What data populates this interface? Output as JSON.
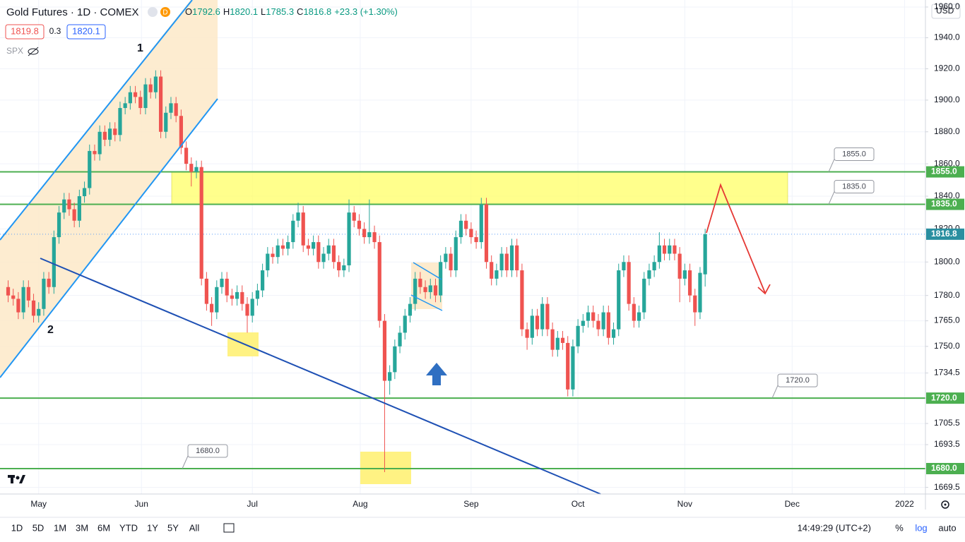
{
  "header": {
    "symbol": "Gold Futures · 1D · COMEX",
    "badge": "D",
    "ohlc_labels": [
      "O",
      "H",
      "L",
      "C"
    ],
    "change": "+23.3 (+1.30%)",
    "bid": "1819.8",
    "spread": "0.3",
    "ask": "1820.1",
    "compare": "SPX",
    "currency": "USD"
  },
  "toolbar": {
    "ranges": [
      "1D",
      "5D",
      "1M",
      "3M",
      "6M",
      "YTD",
      "1Y",
      "5Y",
      "All"
    ],
    "time": "14:49:29 (UTC+2)",
    "percent": "%",
    "log": "log",
    "auto": "auto"
  },
  "annotations": [
    "1",
    "2"
  ],
  "chart_data": {
    "type": "candlestick",
    "log": true,
    "grid": true,
    "up_color": "#26a69a",
    "down_color": "#ef5350",
    "level_color": "#4caf50",
    "xlim": [
      -1.6,
      180.3
    ],
    "xticks": [
      {
        "value": 6.0,
        "label": "May"
      },
      {
        "value": 26.2,
        "label": "Jun"
      },
      {
        "value": 48.0,
        "label": "Jul"
      },
      {
        "value": 69.2,
        "label": "Aug"
      },
      {
        "value": 91.0,
        "label": "Sep"
      },
      {
        "value": 112.0,
        "label": "Oct"
      },
      {
        "value": 133.0,
        "label": "Nov"
      },
      {
        "value": 154.1,
        "label": "Dec"
      },
      {
        "value": 176.2,
        "label": "2022"
      }
    ],
    "ylim": [
      1665.8,
      1964.6
    ],
    "yticks": [
      {
        "value": 1960,
        "label": "1960.0"
      },
      {
        "value": 1940,
        "label": "1940.0"
      },
      {
        "value": 1920,
        "label": "1920.0"
      },
      {
        "value": 1900,
        "label": "1900.0"
      },
      {
        "value": 1880,
        "label": "1880.0"
      },
      {
        "value": 1860,
        "label": "1860.0"
      },
      {
        "value": 1840,
        "label": "1840.0"
      },
      {
        "value": 1820,
        "label": "1820.0"
      },
      {
        "value": 1800,
        "label": "1800.0"
      },
      {
        "value": 1780,
        "label": "1780.0"
      },
      {
        "value": 1765,
        "label": "1765.0"
      },
      {
        "value": 1750,
        "label": "1750.0"
      },
      {
        "value": 1734.5,
        "label": "1734.5"
      },
      {
        "value": 1720,
        "label": "1720.0"
      },
      {
        "value": 1705.5,
        "label": "1705.5"
      },
      {
        "value": 1693.5,
        "label": "1693.5"
      },
      {
        "value": 1680,
        "label": "1680.0"
      },
      {
        "value": 1669.5,
        "label": "1669.5"
      }
    ],
    "levels": [
      {
        "value": 1855,
        "label": "1855.0"
      },
      {
        "value": 1835,
        "label": "1835.0"
      },
      {
        "value": 1720,
        "label": "1720.0"
      },
      {
        "value": 1680,
        "label": "1680.0"
      }
    ],
    "last": 1816.8,
    "ohlc": [
      [
        1785,
        1789,
        1776,
        1780
      ],
      [
        1780,
        1784,
        1774,
        1778
      ],
      [
        1778,
        1782,
        1766,
        1770
      ],
      [
        1770,
        1789,
        1766,
        1785
      ],
      [
        1785,
        1789,
        1773,
        1777
      ],
      [
        1777,
        1781,
        1764,
        1768
      ],
      [
        1768,
        1776,
        1764,
        1772
      ],
      [
        1772,
        1794,
        1768,
        1790
      ],
      [
        1790,
        1794,
        1781,
        1785
      ],
      [
        1785,
        1819,
        1781,
        1815
      ],
      [
        1815,
        1834,
        1811,
        1830
      ],
      [
        1830,
        1842,
        1826,
        1838
      ],
      [
        1838,
        1842,
        1828,
        1832
      ],
      [
        1832,
        1836,
        1821,
        1825
      ],
      [
        1825,
        1844,
        1821,
        1840
      ],
      [
        1840,
        1849,
        1836,
        1845
      ],
      [
        1845,
        1872,
        1841,
        1868
      ],
      [
        1868,
        1872,
        1862,
        1866
      ],
      [
        1866,
        1884,
        1862,
        1880
      ],
      [
        1880,
        1884,
        1871,
        1875
      ],
      [
        1875,
        1886,
        1871,
        1882
      ],
      [
        1882,
        1886,
        1874,
        1878
      ],
      [
        1878,
        1899,
        1874,
        1895
      ],
      [
        1895,
        1902,
        1891,
        1898
      ],
      [
        1898,
        1909,
        1894,
        1905
      ],
      [
        1905,
        1909,
        1898,
        1902
      ],
      [
        1902,
        1906,
        1891,
        1895
      ],
      [
        1895,
        1914,
        1891,
        1910
      ],
      [
        1910,
        1914,
        1901,
        1905
      ],
      [
        1905,
        1919,
        1901,
        1915
      ],
      [
        1915,
        1919,
        1876,
        1880
      ],
      [
        1880,
        1896,
        1876,
        1892
      ],
      [
        1892,
        1902,
        1888,
        1898
      ],
      [
        1898,
        1902,
        1886,
        1890
      ],
      [
        1890,
        1894,
        1866,
        1870
      ],
      [
        1870,
        1874,
        1856,
        1860
      ],
      [
        1860,
        1864,
        1846,
        1855
      ],
      [
        1855,
        1862,
        1851,
        1858
      ],
      [
        1858,
        1862,
        1786,
        1790
      ],
      [
        1790,
        1794,
        1771,
        1775
      ],
      [
        1775,
        1779,
        1762,
        1770
      ],
      [
        1770,
        1789,
        1766,
        1785
      ],
      [
        1785,
        1794,
        1781,
        1790
      ],
      [
        1790,
        1794,
        1776,
        1780
      ],
      [
        1780,
        1784,
        1774,
        1778
      ],
      [
        1778,
        1786,
        1774,
        1782
      ],
      [
        1782,
        1786,
        1771,
        1775
      ],
      [
        1775,
        1779,
        1758,
        1768
      ],
      [
        1768,
        1782,
        1764,
        1778
      ],
      [
        1778,
        1787,
        1774,
        1783
      ],
      [
        1783,
        1799,
        1779,
        1795
      ],
      [
        1795,
        1809,
        1791,
        1805
      ],
      [
        1805,
        1809,
        1799,
        1803
      ],
      [
        1803,
        1814,
        1799,
        1810
      ],
      [
        1810,
        1814,
        1804,
        1808
      ],
      [
        1808,
        1816,
        1804,
        1812
      ],
      [
        1812,
        1829,
        1808,
        1825
      ],
      [
        1825,
        1836,
        1821,
        1830
      ],
      [
        1830,
        1834,
        1806,
        1810
      ],
      [
        1810,
        1814,
        1804,
        1808
      ],
      [
        1808,
        1816,
        1804,
        1812
      ],
      [
        1812,
        1816,
        1796,
        1800
      ],
      [
        1800,
        1809,
        1796,
        1805
      ],
      [
        1805,
        1814,
        1801,
        1810
      ],
      [
        1810,
        1814,
        1796,
        1800
      ],
      [
        1800,
        1804,
        1791,
        1795
      ],
      [
        1795,
        1802,
        1791,
        1798
      ],
      [
        1798,
        1838,
        1794,
        1830
      ],
      [
        1830,
        1834,
        1821,
        1825
      ],
      [
        1825,
        1829,
        1816,
        1820
      ],
      [
        1820,
        1824,
        1811,
        1815
      ],
      [
        1815,
        1838,
        1811,
        1818
      ],
      [
        1818,
        1822,
        1808,
        1812
      ],
      [
        1812,
        1816,
        1761,
        1765
      ],
      [
        1765,
        1769,
        1678,
        1730
      ],
      [
        1730,
        1739,
        1722,
        1735
      ],
      [
        1735,
        1754,
        1731,
        1750
      ],
      [
        1750,
        1762,
        1746,
        1758
      ],
      [
        1758,
        1772,
        1754,
        1768
      ],
      [
        1768,
        1779,
        1764,
        1775
      ],
      [
        1775,
        1794,
        1771,
        1790
      ],
      [
        1790,
        1794,
        1781,
        1785
      ],
      [
        1785,
        1789,
        1778,
        1782
      ],
      [
        1782,
        1790,
        1778,
        1786
      ],
      [
        1786,
        1790,
        1776,
        1780
      ],
      [
        1780,
        1804,
        1776,
        1800
      ],
      [
        1800,
        1809,
        1796,
        1805
      ],
      [
        1805,
        1809,
        1791,
        1795
      ],
      [
        1795,
        1819,
        1791,
        1815
      ],
      [
        1815,
        1829,
        1811,
        1825
      ],
      [
        1825,
        1829,
        1816,
        1820
      ],
      [
        1820,
        1824,
        1811,
        1815
      ],
      [
        1815,
        1819,
        1808,
        1812
      ],
      [
        1812,
        1839,
        1808,
        1835
      ],
      [
        1835,
        1839,
        1796,
        1800
      ],
      [
        1800,
        1804,
        1786,
        1790
      ],
      [
        1790,
        1799,
        1786,
        1795
      ],
      [
        1795,
        1809,
        1791,
        1805
      ],
      [
        1805,
        1809,
        1791,
        1795
      ],
      [
        1795,
        1814,
        1791,
        1810
      ],
      [
        1810,
        1814,
        1791,
        1795
      ],
      [
        1795,
        1799,
        1756,
        1760
      ],
      [
        1760,
        1764,
        1748,
        1755
      ],
      [
        1755,
        1772,
        1751,
        1768
      ],
      [
        1768,
        1772,
        1756,
        1760
      ],
      [
        1760,
        1779,
        1756,
        1775
      ],
      [
        1775,
        1779,
        1756,
        1760
      ],
      [
        1760,
        1764,
        1744,
        1748
      ],
      [
        1748,
        1759,
        1744,
        1755
      ],
      [
        1755,
        1759,
        1748,
        1752
      ],
      [
        1752,
        1756,
        1721,
        1725
      ],
      [
        1725,
        1754,
        1721,
        1750
      ],
      [
        1750,
        1766,
        1746,
        1762
      ],
      [
        1762,
        1769,
        1758,
        1765
      ],
      [
        1765,
        1774,
        1761,
        1770
      ],
      [
        1770,
        1774,
        1761,
        1765
      ],
      [
        1765,
        1769,
        1756,
        1760
      ],
      [
        1760,
        1774,
        1756,
        1770
      ],
      [
        1770,
        1774,
        1751,
        1755
      ],
      [
        1755,
        1764,
        1751,
        1760
      ],
      [
        1760,
        1799,
        1756,
        1795
      ],
      [
        1795,
        1804,
        1791,
        1800
      ],
      [
        1800,
        1804,
        1771,
        1775
      ],
      [
        1775,
        1779,
        1761,
        1765
      ],
      [
        1765,
        1774,
        1761,
        1770
      ],
      [
        1770,
        1794,
        1766,
        1790
      ],
      [
        1790,
        1799,
        1786,
        1795
      ],
      [
        1795,
        1804,
        1791,
        1800
      ],
      [
        1800,
        1818,
        1796,
        1810
      ],
      [
        1810,
        1814,
        1801,
        1805
      ],
      [
        1805,
        1814,
        1801,
        1810
      ],
      [
        1810,
        1814,
        1801,
        1805
      ],
      [
        1805,
        1809,
        1776,
        1790
      ],
      [
        1790,
        1799,
        1786,
        1795
      ],
      [
        1795,
        1799,
        1776,
        1780
      ],
      [
        1780,
        1784,
        1762,
        1770
      ],
      [
        1770,
        1797,
        1766,
        1793.5
      ],
      [
        1792.6,
        1820.1,
        1785.3,
        1816.8
      ]
    ]
  }
}
